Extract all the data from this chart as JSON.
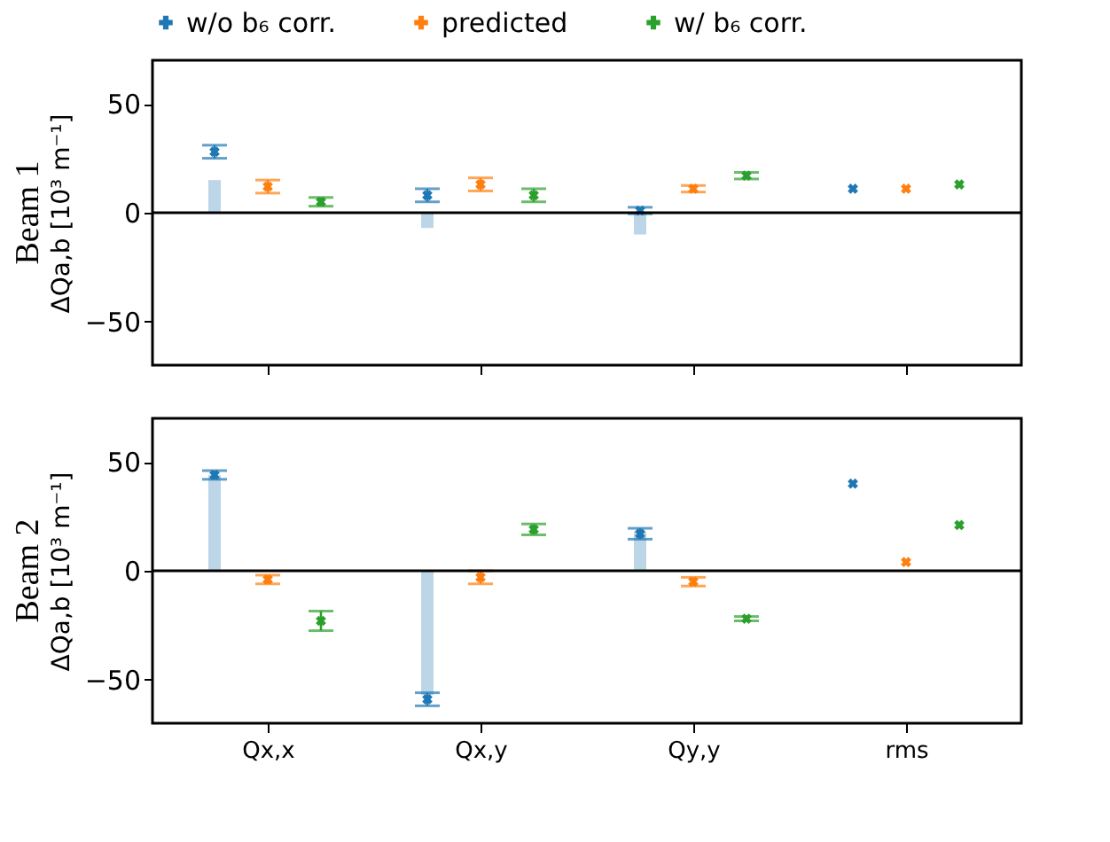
{
  "chart_data": [
    {
      "type": "scatter",
      "title": "Beam 1",
      "ylabel": "ΔQa,b [10³ m⁻¹]",
      "categories": [
        null,
        null,
        null,
        null
      ],
      "ylim": [
        -70,
        70
      ],
      "yticks": [
        -50,
        0,
        50
      ],
      "grid": false,
      "legend": "top",
      "marker": "cross",
      "tick_labels": "y",
      "ref_lines": [
        {
          "axis": "y",
          "value": 0,
          "color": "#000000"
        }
      ],
      "series": [
        {
          "type": "bar",
          "color": "#bcd6e8",
          "values": [
            15,
            -7,
            -10,
            null
          ]
        },
        {
          "name": "w/o b₆ corr.",
          "color": "#1f77b4",
          "values": [
            28,
            8,
            1,
            11
          ],
          "errors": [
            3,
            3,
            1.5,
            null
          ]
        },
        {
          "name": "predicted",
          "color": "#ff7f0e",
          "values": [
            12,
            13,
            11,
            11
          ],
          "errors": [
            3,
            3,
            1.5,
            null
          ]
        },
        {
          "name": "w/ b₆ corr.",
          "color": "#2ca02c",
          "values": [
            5,
            8,
            17,
            13
          ],
          "errors": [
            2,
            3,
            1.5,
            null
          ]
        }
      ]
    },
    {
      "type": "scatter",
      "title": "Beam 2",
      "ylabel": "ΔQa,b [10³ m⁻¹]",
      "categories": [
        "Qx,x",
        "Qx,y",
        "Qy,y",
        "rms"
      ],
      "ylim": [
        -70,
        70
      ],
      "yticks": [
        -50,
        0,
        50
      ],
      "grid": false,
      "marker": "cross",
      "ref_lines": [
        {
          "axis": "y",
          "value": 0,
          "color": "#000000"
        }
      ],
      "series": [
        {
          "type": "bar",
          "color": "#bcd6e8",
          "values": [
            44,
            -57,
            18,
            null
          ]
        },
        {
          "name": "w/o b₆ corr.",
          "color": "#1f77b4",
          "values": [
            44,
            -59,
            17,
            40
          ],
          "errors": [
            2,
            3,
            2.5,
            null
          ]
        },
        {
          "name": "predicted",
          "color": "#ff7f0e",
          "values": [
            -4,
            -3,
            -5,
            4
          ],
          "errors": [
            2,
            3,
            2,
            null
          ]
        },
        {
          "name": "w/ b₆ corr.",
          "color": "#2ca02c",
          "values": [
            -23,
            19,
            -22,
            21
          ],
          "errors": [
            4.5,
            2.5,
            1,
            null
          ]
        }
      ]
    }
  ]
}
